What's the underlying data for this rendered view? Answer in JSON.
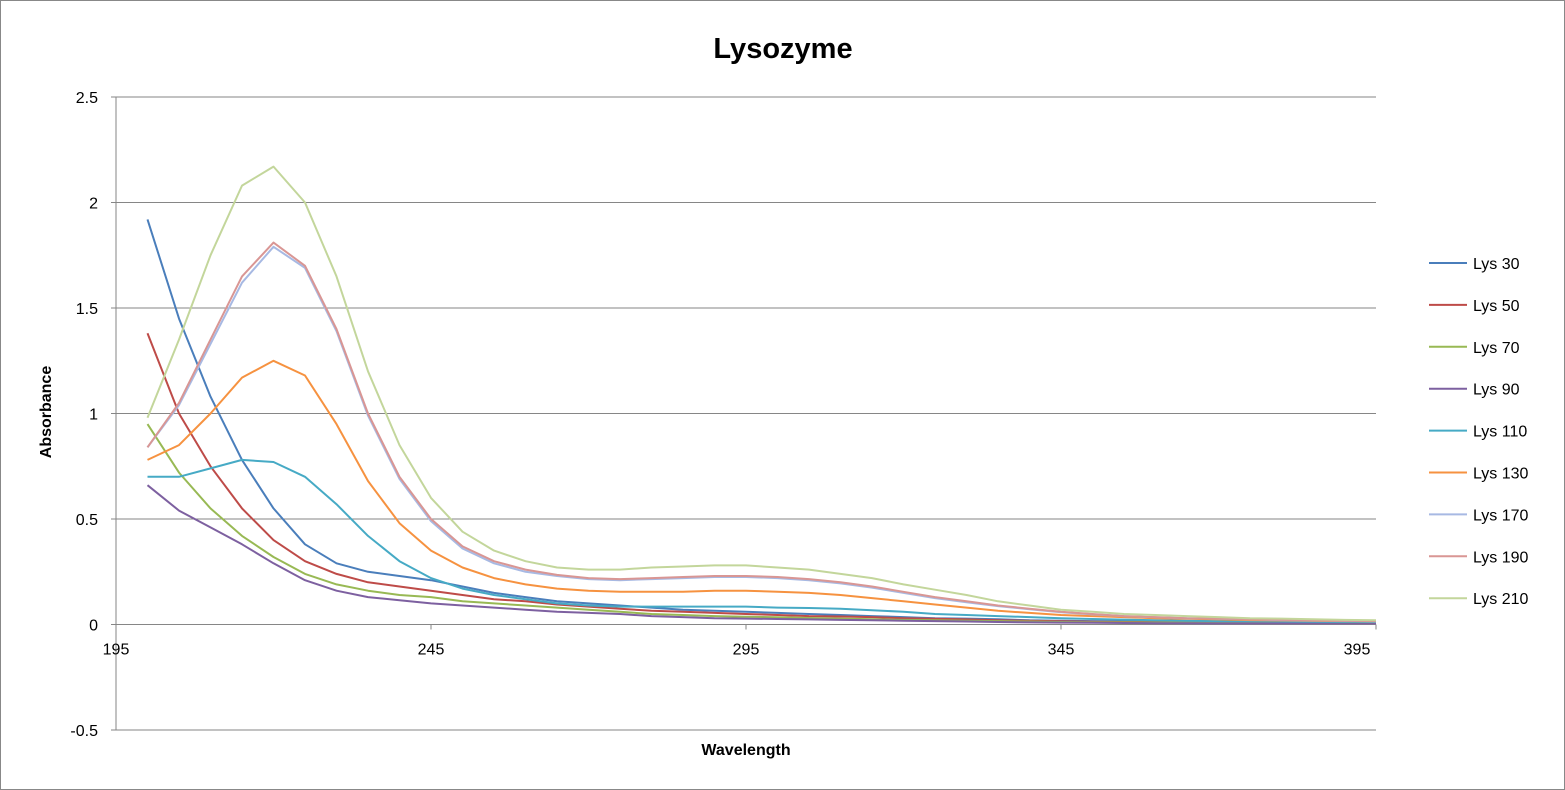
{
  "chart_data": {
    "type": "line",
    "title": "Lysozyme",
    "xlabel": "Wavelength",
    "ylabel": "Absorbance",
    "xlim": [
      195,
      395
    ],
    "ylim": [
      -0.5,
      2.5
    ],
    "xticks": [
      "195",
      "245",
      "295",
      "345",
      "395"
    ],
    "yticks": [
      "-0.5",
      "0",
      "0.5",
      "1",
      "1.5",
      "2",
      "2.5"
    ],
    "grid": "horizontal",
    "legend": "right",
    "x": [
      200,
      205,
      210,
      215,
      220,
      225,
      230,
      235,
      240,
      245,
      250,
      255,
      260,
      265,
      270,
      275,
      280,
      285,
      290,
      295,
      300,
      305,
      310,
      315,
      320,
      325,
      330,
      335,
      340,
      345,
      350,
      355,
      360,
      365,
      370,
      375,
      380,
      385,
      390,
      395
    ],
    "series": [
      {
        "name": "Lys 30",
        "color": "#4A7EBB",
        "values": [
          1.92,
          1.45,
          1.08,
          0.78,
          0.55,
          0.38,
          0.29,
          0.25,
          0.23,
          0.21,
          0.18,
          0.15,
          0.13,
          0.11,
          0.1,
          0.09,
          0.08,
          0.07,
          0.065,
          0.06,
          0.055,
          0.05,
          0.045,
          0.04,
          0.035,
          0.03,
          0.028,
          0.025,
          0.02,
          0.018,
          0.016,
          0.015,
          0.014,
          0.013,
          0.012,
          0.011,
          0.01,
          0.01,
          0.01,
          0.01
        ]
      },
      {
        "name": "Lys 50",
        "color": "#BE4B48",
        "values": [
          1.38,
          1.0,
          0.75,
          0.55,
          0.4,
          0.3,
          0.24,
          0.2,
          0.18,
          0.16,
          0.14,
          0.12,
          0.11,
          0.095,
          0.085,
          0.075,
          0.065,
          0.06,
          0.055,
          0.05,
          0.045,
          0.04,
          0.038,
          0.035,
          0.03,
          0.027,
          0.024,
          0.02,
          0.018,
          0.015,
          0.013,
          0.012,
          0.011,
          0.01,
          0.01,
          0.009,
          0.009,
          0.008,
          0.008,
          0.008
        ]
      },
      {
        "name": "Lys 70",
        "color": "#98B954",
        "values": [
          0.95,
          0.72,
          0.55,
          0.42,
          0.32,
          0.24,
          0.19,
          0.16,
          0.14,
          0.13,
          0.11,
          0.1,
          0.09,
          0.08,
          0.07,
          0.06,
          0.05,
          0.045,
          0.04,
          0.037,
          0.034,
          0.031,
          0.028,
          0.025,
          0.022,
          0.02,
          0.018,
          0.016,
          0.014,
          0.012,
          0.011,
          0.01,
          0.009,
          0.009,
          0.008,
          0.008,
          0.007,
          0.007,
          0.007,
          0.007
        ]
      },
      {
        "name": "Lys 90",
        "color": "#7D60A0",
        "values": [
          0.66,
          0.54,
          0.46,
          0.38,
          0.29,
          0.21,
          0.16,
          0.13,
          0.115,
          0.1,
          0.09,
          0.08,
          0.07,
          0.06,
          0.055,
          0.05,
          0.04,
          0.035,
          0.03,
          0.028,
          0.026,
          0.024,
          0.022,
          0.02,
          0.018,
          0.016,
          0.014,
          0.012,
          0.01,
          0.009,
          0.008,
          0.007,
          0.006,
          0.006,
          0.005,
          0.005,
          0.005,
          0.005,
          0.005,
          0.005
        ]
      },
      {
        "name": "Lys 110",
        "color": "#46AAC5",
        "values": [
          0.7,
          0.7,
          0.74,
          0.78,
          0.77,
          0.7,
          0.57,
          0.42,
          0.3,
          0.22,
          0.17,
          0.14,
          0.12,
          0.1,
          0.09,
          0.085,
          0.085,
          0.085,
          0.085,
          0.085,
          0.08,
          0.078,
          0.075,
          0.068,
          0.06,
          0.05,
          0.045,
          0.04,
          0.035,
          0.03,
          0.026,
          0.023,
          0.02,
          0.018,
          0.016,
          0.015,
          0.014,
          0.013,
          0.012,
          0.012
        ]
      },
      {
        "name": "Lys 130",
        "color": "#F69240",
        "values": [
          0.78,
          0.85,
          1.0,
          1.17,
          1.25,
          1.18,
          0.95,
          0.68,
          0.48,
          0.35,
          0.27,
          0.22,
          0.19,
          0.17,
          0.16,
          0.155,
          0.155,
          0.155,
          0.16,
          0.16,
          0.155,
          0.15,
          0.14,
          0.125,
          0.11,
          0.095,
          0.08,
          0.065,
          0.055,
          0.045,
          0.04,
          0.035,
          0.03,
          0.027,
          0.024,
          0.021,
          0.019,
          0.017,
          0.016,
          0.015
        ]
      },
      {
        "name": "Lys 170",
        "color": "#A7B9E3",
        "values": [
          0.84,
          1.04,
          1.33,
          1.62,
          1.79,
          1.69,
          1.39,
          0.99,
          0.69,
          0.49,
          0.36,
          0.29,
          0.25,
          0.23,
          0.215,
          0.21,
          0.215,
          0.22,
          0.225,
          0.225,
          0.22,
          0.21,
          0.195,
          0.175,
          0.15,
          0.125,
          0.105,
          0.087,
          0.072,
          0.058,
          0.048,
          0.04,
          0.034,
          0.03,
          0.027,
          0.024,
          0.021,
          0.019,
          0.017,
          0.015
        ]
      },
      {
        "name": "Lys 190",
        "color": "#D99694",
        "values": [
          0.84,
          1.05,
          1.35,
          1.65,
          1.81,
          1.7,
          1.4,
          1.0,
          0.7,
          0.5,
          0.37,
          0.3,
          0.26,
          0.235,
          0.22,
          0.215,
          0.22,
          0.225,
          0.23,
          0.23,
          0.225,
          0.215,
          0.2,
          0.18,
          0.155,
          0.13,
          0.11,
          0.09,
          0.075,
          0.06,
          0.05,
          0.04,
          0.035,
          0.03,
          0.028,
          0.025,
          0.022,
          0.02,
          0.018,
          0.016
        ]
      },
      {
        "name": "Lys 210",
        "color": "#C3D69B",
        "values": [
          0.98,
          1.35,
          1.75,
          2.08,
          2.17,
          2.0,
          1.65,
          1.2,
          0.85,
          0.6,
          0.44,
          0.35,
          0.3,
          0.27,
          0.26,
          0.26,
          0.27,
          0.275,
          0.28,
          0.28,
          0.27,
          0.26,
          0.24,
          0.22,
          0.19,
          0.165,
          0.14,
          0.11,
          0.09,
          0.07,
          0.06,
          0.05,
          0.045,
          0.04,
          0.035,
          0.03,
          0.028,
          0.025,
          0.022,
          0.02
        ]
      }
    ]
  }
}
